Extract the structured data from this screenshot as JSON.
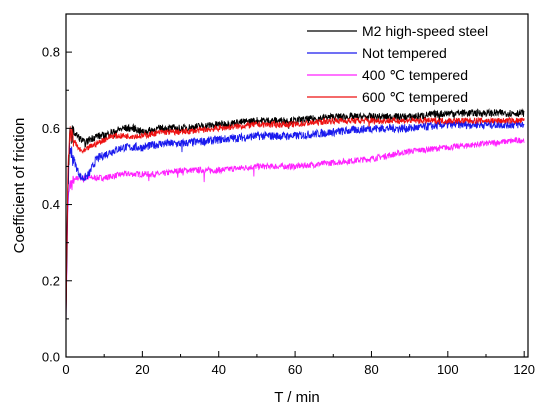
{
  "chart_data": {
    "type": "line",
    "title": "",
    "xlabel": "T / min",
    "ylabel": "Coefficient of friction",
    "xlim": [
      0,
      121
    ],
    "ylim": [
      0,
      0.9
    ],
    "x_ticks": [
      0,
      20,
      40,
      60,
      80,
      100,
      120
    ],
    "y_ticks": [
      0.0,
      0.2,
      0.4,
      0.6,
      0.8
    ],
    "x_tick_labels": [
      "0",
      "20",
      "40",
      "60",
      "80",
      "100",
      "120"
    ],
    "y_tick_labels": [
      "0.0",
      "0.2",
      "0.4",
      "0.6",
      "0.8"
    ],
    "grid": false,
    "legend_position": "top-right",
    "series": [
      {
        "name": "M2 high-speed steel",
        "color": "#000000",
        "x": [
          0,
          0.5,
          1,
          2,
          3,
          4,
          5,
          6,
          8,
          10,
          12,
          15,
          18,
          20,
          25,
          30,
          40,
          50,
          60,
          70,
          80,
          90,
          100,
          110,
          120
        ],
        "y": [
          0.1,
          0.45,
          0.58,
          0.59,
          0.58,
          0.57,
          0.56,
          0.57,
          0.58,
          0.58,
          0.59,
          0.6,
          0.6,
          0.59,
          0.6,
          0.6,
          0.61,
          0.62,
          0.62,
          0.63,
          0.63,
          0.63,
          0.64,
          0.64,
          0.64
        ]
      },
      {
        "name": "Not tempered",
        "color": "#1a1aee",
        "x": [
          0,
          0.5,
          1,
          2,
          3,
          4,
          5,
          6,
          7,
          8,
          10,
          12,
          15,
          18,
          20,
          25,
          30,
          40,
          50,
          60,
          70,
          80,
          90,
          100,
          110,
          120
        ],
        "y": [
          0.1,
          0.45,
          0.55,
          0.52,
          0.49,
          0.47,
          0.47,
          0.48,
          0.5,
          0.52,
          0.53,
          0.54,
          0.55,
          0.55,
          0.55,
          0.56,
          0.56,
          0.57,
          0.58,
          0.58,
          0.59,
          0.6,
          0.6,
          0.61,
          0.61,
          0.61
        ]
      },
      {
        "name": "400 ℃ tempered",
        "color": "#ff22ff",
        "x": [
          0,
          0.5,
          1,
          2,
          3,
          5,
          8,
          10,
          15,
          20,
          25,
          30,
          40,
          50,
          60,
          70,
          80,
          90,
          100,
          110,
          120
        ],
        "y": [
          0.1,
          0.4,
          0.45,
          0.46,
          0.47,
          0.47,
          0.47,
          0.47,
          0.48,
          0.48,
          0.48,
          0.49,
          0.49,
          0.5,
          0.5,
          0.51,
          0.52,
          0.54,
          0.55,
          0.56,
          0.57
        ]
      },
      {
        "name": "600 ℃ tempered",
        "color": "#ee1111",
        "x": [
          0,
          0.5,
          1,
          2,
          3,
          4,
          5,
          6,
          8,
          10,
          12,
          15,
          18,
          20,
          25,
          30,
          40,
          50,
          60,
          70,
          80,
          90,
          100,
          110,
          120
        ],
        "y": [
          0.1,
          0.5,
          0.59,
          0.57,
          0.55,
          0.54,
          0.54,
          0.55,
          0.56,
          0.57,
          0.58,
          0.58,
          0.58,
          0.58,
          0.59,
          0.59,
          0.6,
          0.61,
          0.61,
          0.62,
          0.62,
          0.62,
          0.62,
          0.62,
          0.62
        ]
      }
    ]
  }
}
